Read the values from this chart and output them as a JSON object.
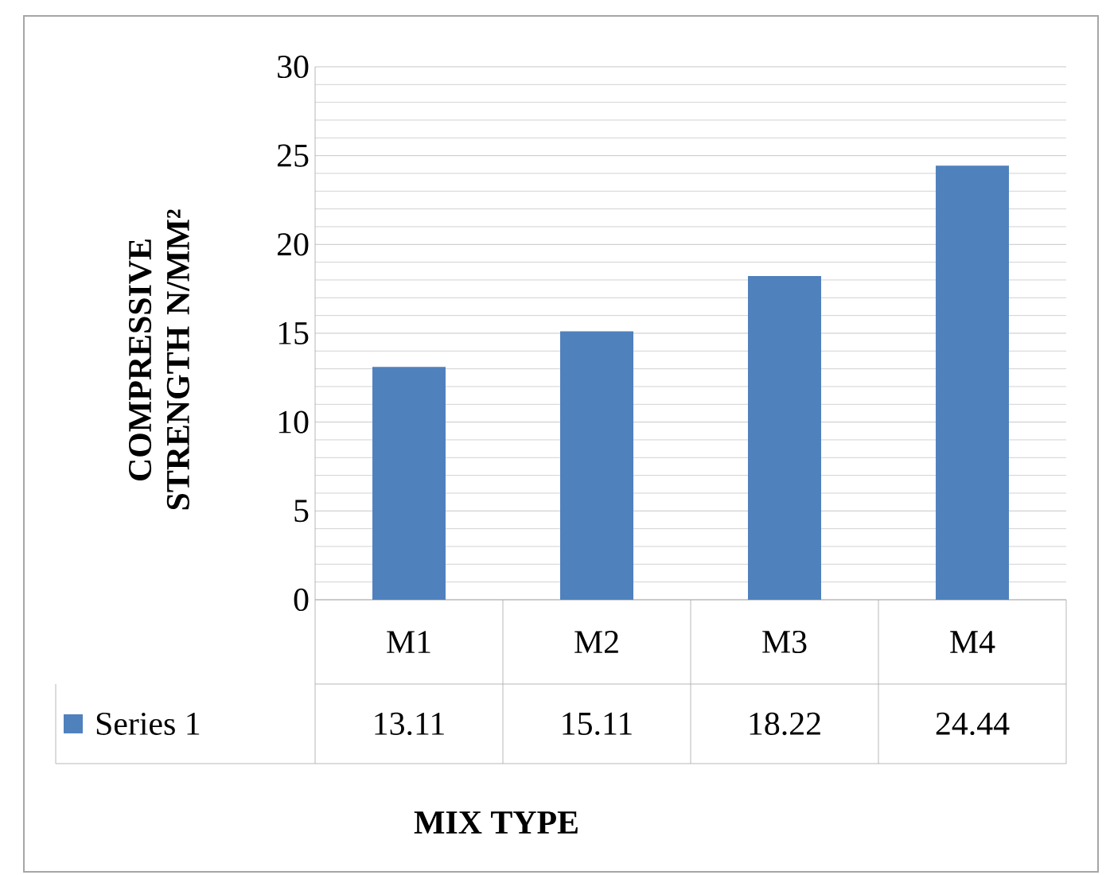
{
  "chart_data": {
    "type": "bar",
    "xlabel": "MIX TYPE",
    "ylabel": "COMPRESSIVE STRENGTH N/MM²",
    "categories": [
      "M1",
      "M2",
      "M3",
      "M4"
    ],
    "series": [
      {
        "name": "Series 1",
        "color": "#4f81bd",
        "values": [
          13.11,
          15.11,
          18.22,
          24.44
        ]
      }
    ],
    "ylim": [
      0,
      30
    ],
    "yticks": [
      0,
      5,
      10,
      15,
      20,
      25,
      30
    ],
    "grid": true,
    "data_labels": true
  }
}
